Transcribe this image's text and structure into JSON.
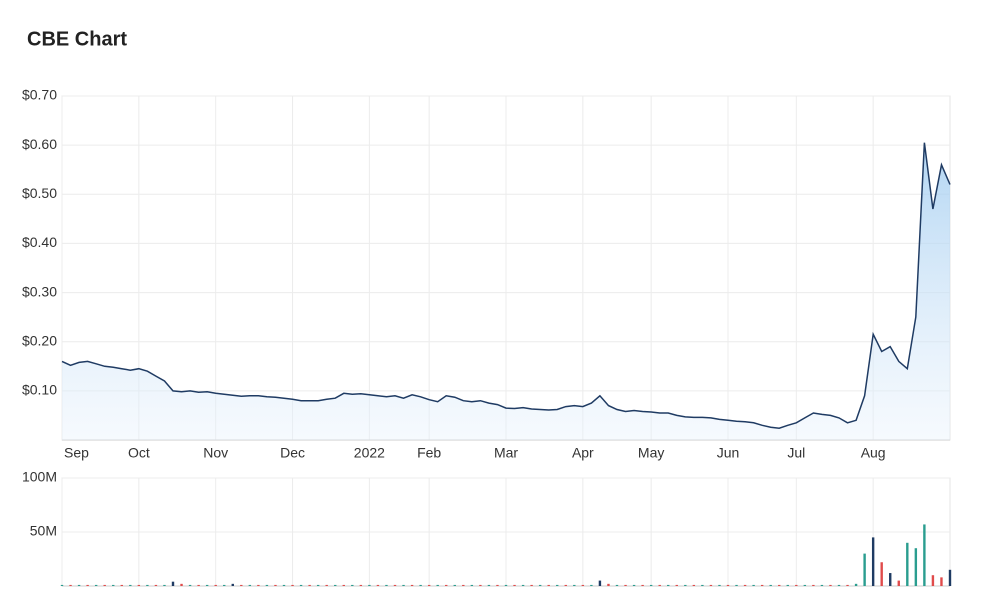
{
  "chart_data": [
    {
      "type": "line",
      "title": "CBE Chart",
      "color": "#1f3b63",
      "grid": true,
      "categories": [
        "Sep",
        null,
        null,
        null,
        null,
        null,
        null,
        null,
        null,
        "Oct",
        null,
        null,
        null,
        null,
        null,
        null,
        null,
        null,
        "Nov",
        null,
        null,
        null,
        null,
        null,
        null,
        null,
        null,
        "Dec",
        null,
        null,
        null,
        null,
        null,
        null,
        null,
        null,
        "2022",
        null,
        null,
        null,
        null,
        null,
        null,
        "Feb",
        null,
        null,
        null,
        null,
        null,
        null,
        null,
        null,
        "Mar",
        null,
        null,
        null,
        null,
        null,
        null,
        null,
        null,
        "Apr",
        null,
        null,
        null,
        null,
        null,
        null,
        null,
        "May",
        null,
        null,
        null,
        null,
        null,
        null,
        null,
        null,
        "Jun",
        null,
        null,
        null,
        null,
        null,
        null,
        null,
        "Jul",
        null,
        null,
        null,
        null,
        null,
        null,
        null,
        null,
        "Aug",
        null,
        null,
        null,
        null,
        null,
        null,
        null,
        null,
        null
      ],
      "values": [
        0.16,
        0.152,
        0.158,
        0.16,
        0.155,
        0.15,
        0.148,
        0.145,
        0.142,
        0.145,
        0.14,
        0.13,
        0.12,
        0.1,
        0.098,
        0.1,
        0.097,
        0.098,
        0.095,
        0.093,
        0.091,
        0.089,
        0.09,
        0.09,
        0.088,
        0.087,
        0.085,
        0.083,
        0.08,
        0.08,
        0.08,
        0.083,
        0.085,
        0.095,
        0.093,
        0.094,
        0.092,
        0.09,
        0.088,
        0.09,
        0.085,
        0.092,
        0.088,
        0.082,
        0.078,
        0.09,
        0.087,
        0.08,
        0.078,
        0.08,
        0.075,
        0.072,
        0.065,
        0.064,
        0.066,
        0.063,
        0.062,
        0.061,
        0.062,
        0.068,
        0.07,
        0.068,
        0.075,
        0.09,
        0.07,
        0.062,
        0.058,
        0.06,
        0.058,
        0.057,
        0.055,
        0.055,
        0.05,
        0.047,
        0.046,
        0.046,
        0.045,
        0.042,
        0.04,
        0.038,
        0.037,
        0.035,
        0.03,
        0.026,
        0.024,
        0.03,
        0.035,
        0.045,
        0.055,
        0.052,
        0.05,
        0.045,
        0.035,
        0.04,
        0.09,
        0.215,
        0.18,
        0.19,
        0.16,
        0.145,
        0.25,
        0.605,
        0.47,
        0.56,
        0.52
      ],
      "ylim": [
        0,
        0.7
      ],
      "yticks": [
        {
          "value": 0.1,
          "label": "$0.10"
        },
        {
          "value": 0.2,
          "label": "$0.20"
        },
        {
          "value": 0.3,
          "label": "$0.30"
        },
        {
          "value": 0.4,
          "label": "$0.40"
        },
        {
          "value": 0.5,
          "label": "$0.50"
        },
        {
          "value": 0.6,
          "label": "$0.60"
        },
        {
          "value": 0.7,
          "label": "$0.70"
        }
      ]
    },
    {
      "type": "bar",
      "grid": true,
      "values": [
        1000000,
        1000000,
        1000000,
        1000000,
        1000000,
        1000000,
        1000000,
        1000000,
        1000000,
        1000000,
        1000000,
        1000000,
        1000000,
        4000000,
        2000000,
        1000000,
        1000000,
        1000000,
        1000000,
        1000000,
        2000000,
        1000000,
        1000000,
        1000000,
        1000000,
        1000000,
        1000000,
        1000000,
        1000000,
        1000000,
        1000000,
        1000000,
        1000000,
        1000000,
        1000000,
        1000000,
        1000000,
        1000000,
        1000000,
        1000000,
        1000000,
        1000000,
        1000000,
        1000000,
        1000000,
        1000000,
        1000000,
        1000000,
        1000000,
        1000000,
        1000000,
        1000000,
        1000000,
        1000000,
        1000000,
        1000000,
        1000000,
        1000000,
        1000000,
        1000000,
        1000000,
        1000000,
        1000000,
        5000000,
        2000000,
        1000000,
        1000000,
        1000000,
        1000000,
        1000000,
        1000000,
        1000000,
        1000000,
        1000000,
        1000000,
        1000000,
        1000000,
        1000000,
        1000000,
        1000000,
        1000000,
        1000000,
        1000000,
        1000000,
        1000000,
        1000000,
        1000000,
        1000000,
        1000000,
        1000000,
        1000000,
        1000000,
        1000000,
        2000000,
        30000000,
        45000000,
        22000000,
        12000000,
        5000000,
        40000000,
        35000000,
        57000000,
        10000000,
        8000000,
        15000000
      ],
      "colors": [
        "#2a9d8f",
        "#e04b4b",
        "#2a9d8f",
        "#e04b4b",
        "#2a9d8f",
        "#e04b4b",
        "#2a9d8f",
        "#e04b4b",
        "#2a9d8f",
        "#e04b4b",
        "#2a9d8f",
        "#e04b4b",
        "#2a9d8f",
        "#1f3b63",
        "#e04b4b",
        "#2a9d8f",
        "#e04b4b",
        "#2a9d8f",
        "#e04b4b",
        "#2a9d8f",
        "#1f3b63",
        "#e04b4b",
        "#2a9d8f",
        "#e04b4b",
        "#2a9d8f",
        "#e04b4b",
        "#2a9d8f",
        "#e04b4b",
        "#2a9d8f",
        "#e04b4b",
        "#2a9d8f",
        "#e04b4b",
        "#2a9d8f",
        "#e04b4b",
        "#2a9d8f",
        "#e04b4b",
        "#2a9d8f",
        "#e04b4b",
        "#2a9d8f",
        "#e04b4b",
        "#2a9d8f",
        "#e04b4b",
        "#2a9d8f",
        "#e04b4b",
        "#2a9d8f",
        "#e04b4b",
        "#2a9d8f",
        "#e04b4b",
        "#2a9d8f",
        "#e04b4b",
        "#2a9d8f",
        "#e04b4b",
        "#2a9d8f",
        "#e04b4b",
        "#2a9d8f",
        "#e04b4b",
        "#2a9d8f",
        "#e04b4b",
        "#2a9d8f",
        "#e04b4b",
        "#2a9d8f",
        "#e04b4b",
        "#2a9d8f",
        "#1f3b63",
        "#e04b4b",
        "#2a9d8f",
        "#e04b4b",
        "#2a9d8f",
        "#e04b4b",
        "#2a9d8f",
        "#e04b4b",
        "#2a9d8f",
        "#e04b4b",
        "#2a9d8f",
        "#e04b4b",
        "#2a9d8f",
        "#e04b4b",
        "#2a9d8f",
        "#e04b4b",
        "#2a9d8f",
        "#e04b4b",
        "#2a9d8f",
        "#e04b4b",
        "#2a9d8f",
        "#e04b4b",
        "#2a9d8f",
        "#e04b4b",
        "#2a9d8f",
        "#e04b4b",
        "#2a9d8f",
        "#e04b4b",
        "#2a9d8f",
        "#e04b4b",
        "#2a9d8f",
        "#2a9d8f",
        "#1f3b63",
        "#e04b4b",
        "#1f3b63",
        "#e04b4b",
        "#2a9d8f",
        "#2a9d8f",
        "#2a9d8f",
        "#e04b4b",
        "#e04b4b",
        "#1f3b63"
      ],
      "ylim": [
        0,
        100000000
      ],
      "yticks": [
        {
          "value": 50000000,
          "label": "50M"
        },
        {
          "value": 100000000,
          "label": "100M"
        }
      ]
    }
  ]
}
